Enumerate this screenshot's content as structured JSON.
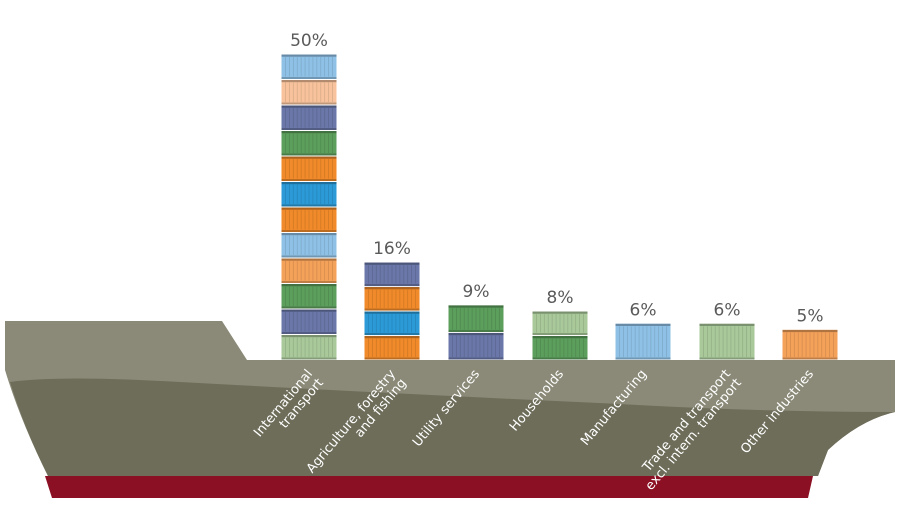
{
  "chart_data": {
    "type": "bar",
    "title": "",
    "xlabel": "",
    "ylabel": "",
    "ylim": [
      0,
      50
    ],
    "grid": false,
    "legend": "none",
    "value_suffix": "%",
    "categories": [
      [
        "International",
        "transport"
      ],
      [
        "Agriculture, forestry",
        "and fishing"
      ],
      [
        "Utility services"
      ],
      [
        "Households"
      ],
      [
        "Manufacturing"
      ],
      [
        "Trade and transport",
        "excl. intern. transport"
      ],
      [
        "Other industries"
      ]
    ],
    "values": [
      50,
      16,
      9,
      8,
      6,
      6,
      5
    ],
    "value_labels": [
      "50%",
      "16%",
      "9%",
      "8%",
      "6%",
      "6%",
      "5%"
    ],
    "container_colors": [
      [
        "#a9c99a",
        "#6a77a8",
        "#5c9e5c",
        "#f4a15a",
        "#8fc1e6",
        "#f08a2a",
        "#2b9ad6",
        "#f08a2a",
        "#5c9e5c",
        "#6a77a8",
        "#f8c39c",
        "#8fc1e6"
      ],
      [
        "#f08a2a",
        "#2b9ad6",
        "#f08a2a",
        "#6a77a8"
      ],
      [
        "#6a77a8",
        "#5c9e5c"
      ],
      [
        "#5c9e5c",
        "#a9c99a"
      ],
      [
        "#8fc1e6"
      ],
      [
        "#a9c99a"
      ],
      [
        "#f4a15a"
      ]
    ],
    "colors": {
      "hull_top": "#8b8a78",
      "hull_bottom": "#6e6d5a",
      "keel": "#8c1024"
    }
  }
}
